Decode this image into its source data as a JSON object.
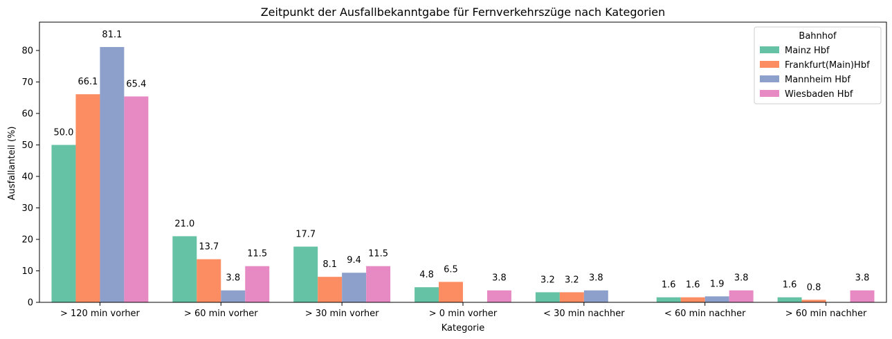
{
  "chart_data": {
    "type": "bar",
    "title": "Zeitpunkt der Ausfallbekanntgabe für Fernverkehrszüge nach Kategorien",
    "xlabel": "Kategorie",
    "ylabel": "Ausfallanteil (%)",
    "ylim": [
      0,
      89
    ],
    "yticks": [
      0,
      10,
      20,
      30,
      40,
      50,
      60,
      70,
      80
    ],
    "grid": false,
    "legend_title": "Bahnhof",
    "legend_position": "top-right",
    "categories": [
      "> 120 min vorher",
      "> 60 min vorher",
      "> 30 min vorher",
      "> 0 min vorher",
      "< 30 min nachher",
      "< 60 min nachher",
      "> 60 min nachher"
    ],
    "series": [
      {
        "name": "Mainz Hbf",
        "color": "#66c2a5",
        "values": [
          50.0,
          21.0,
          17.7,
          4.8,
          3.2,
          1.6,
          1.6
        ]
      },
      {
        "name": "Frankfurt(Main)Hbf",
        "color": "#fc8d62",
        "values": [
          66.1,
          13.7,
          8.1,
          6.5,
          3.2,
          1.6,
          0.8
        ]
      },
      {
        "name": "Mannheim Hbf",
        "color": "#8da0cb",
        "values": [
          81.1,
          3.8,
          9.4,
          null,
          3.8,
          1.9,
          null
        ]
      },
      {
        "name": "Wiesbaden Hbf",
        "color": "#e78ac3",
        "values": [
          65.4,
          11.5,
          11.5,
          3.8,
          null,
          3.8,
          3.8
        ]
      }
    ]
  }
}
